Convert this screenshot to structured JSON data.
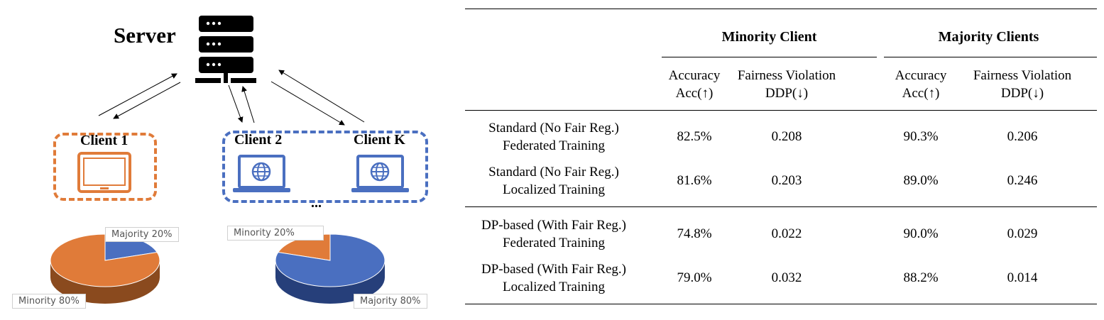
{
  "diagram": {
    "server_label": "Server",
    "clients": [
      {
        "label": "Client 1",
        "device": "tablet-icon",
        "color": "#E07B39"
      },
      {
        "label": "Client 2",
        "device": "laptop-globe-icon",
        "color": "#4A6FC0"
      },
      {
        "label": "Client K",
        "device": "laptop-globe-icon",
        "color": "#4A6FC0"
      }
    ],
    "ellipsis": "...",
    "pies": [
      {
        "slices": [
          {
            "label": "Minority 80%",
            "value": 80,
            "color": "#E07B39"
          },
          {
            "label": "Majority 20%",
            "value": 20,
            "color": "#4A6FC0"
          }
        ]
      },
      {
        "slices": [
          {
            "label": "Majority 80%",
            "value": 80,
            "color": "#4A6FC0"
          },
          {
            "label": "Minority 20%",
            "value": 20,
            "color": "#E07B39"
          }
        ]
      }
    ]
  },
  "table": {
    "group_headers": [
      "Minority Client",
      "Majority Clients"
    ],
    "sub_headers": [
      [
        "Accuracy",
        "Acc(↑)"
      ],
      [
        "Fairness Violation",
        "DDP(↓)"
      ],
      [
        "Accuracy",
        "Acc(↑)"
      ],
      [
        "Fairness Violation",
        "DDP(↓)"
      ]
    ],
    "rows": [
      {
        "method": [
          "Standard (No Fair Reg.)",
          "Federated Training"
        ],
        "values": [
          "82.5%",
          "0.208",
          "90.3%",
          "0.206"
        ]
      },
      {
        "method": [
          "Standard (No Fair Reg.)",
          "Localized Training"
        ],
        "values": [
          "81.6%",
          "0.203",
          "89.0%",
          "0.246"
        ]
      },
      {
        "method": [
          "DP-based (With Fair Reg.)",
          "Federated Training"
        ],
        "values": [
          "74.8%",
          "0.022",
          "90.0%",
          "0.029"
        ]
      },
      {
        "method": [
          "DP-based (With Fair Reg.)",
          "Localized Training"
        ],
        "values": [
          "79.0%",
          "0.032",
          "88.2%",
          "0.014"
        ]
      }
    ]
  }
}
